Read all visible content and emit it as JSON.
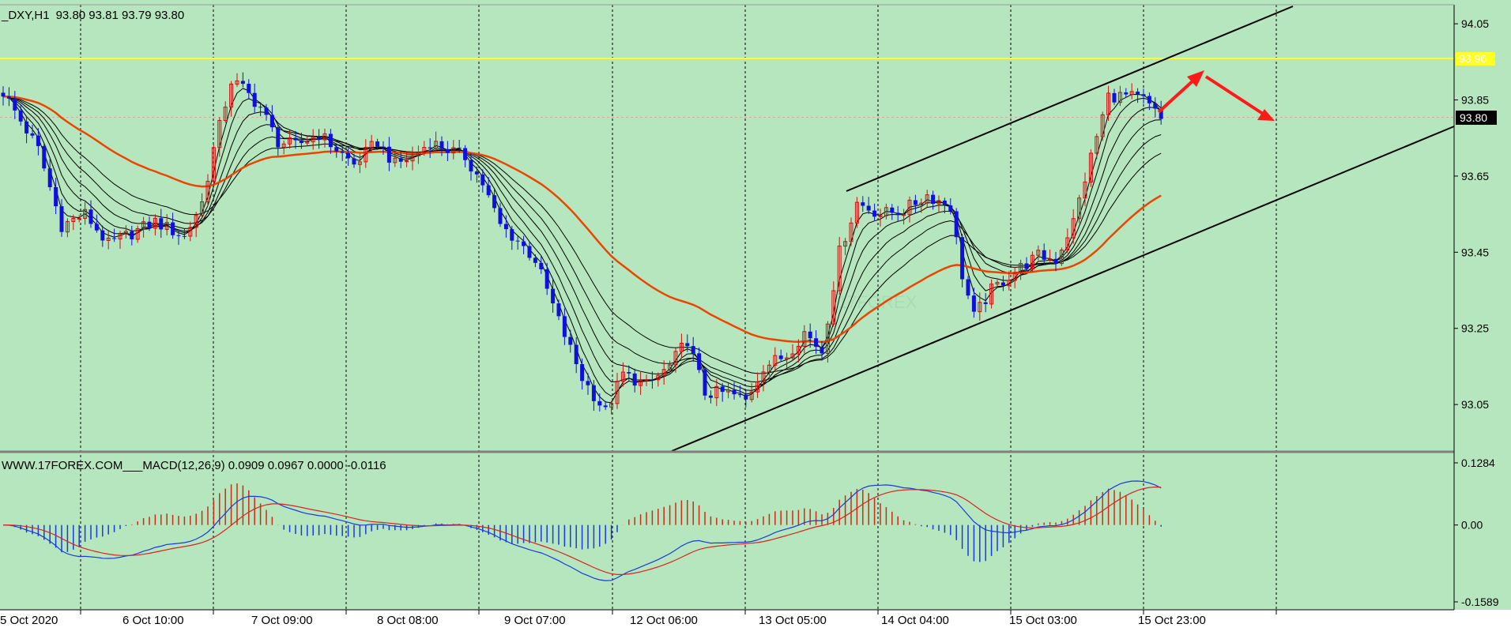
{
  "header": {
    "symbol": "_DXY,H1",
    "ohlc": "93.80 93.81 93.79 93.80"
  },
  "chart_data": [
    {
      "type": "candlestick",
      "title": "_DXY,H1",
      "ylim": [
        92.93,
        94.1
      ],
      "y_ticks": [
        "94.05",
        "93.85",
        "93.65",
        "93.45",
        "93.25",
        "93.05"
      ],
      "x_ticks": [
        "5 Oct 2020",
        "6 Oct 10:00",
        "7 Oct 09:00",
        "8 Oct 08:00",
        "9 Oct 07:00",
        "12 Oct 06:00",
        "13 Oct 05:00",
        "14 Oct 04:00",
        "15 Oct 03:00",
        "15 Oct 23:00"
      ],
      "bull_color": "#cc1111",
      "bear_color": "#1010dd",
      "anchors": [
        {
          "i": 0,
          "v": 93.87
        },
        {
          "i": 6,
          "v": 93.72
        },
        {
          "i": 10,
          "v": 93.52
        },
        {
          "i": 14,
          "v": 93.55
        },
        {
          "i": 18,
          "v": 93.47
        },
        {
          "i": 22,
          "v": 93.5
        },
        {
          "i": 26,
          "v": 93.53
        },
        {
          "i": 31,
          "v": 93.49
        },
        {
          "i": 34,
          "v": 93.58
        },
        {
          "i": 36,
          "v": 93.72
        },
        {
          "i": 39,
          "v": 93.9
        },
        {
          "i": 41,
          "v": 93.88
        },
        {
          "i": 44,
          "v": 93.83
        },
        {
          "i": 47,
          "v": 93.74
        },
        {
          "i": 50,
          "v": 93.73
        },
        {
          "i": 54,
          "v": 93.76
        },
        {
          "i": 57,
          "v": 93.72
        },
        {
          "i": 60,
          "v": 93.68
        },
        {
          "i": 64,
          "v": 93.74
        },
        {
          "i": 67,
          "v": 93.68
        },
        {
          "i": 70,
          "v": 93.7
        },
        {
          "i": 73,
          "v": 93.74
        },
        {
          "i": 76,
          "v": 93.72
        },
        {
          "i": 79,
          "v": 93.7
        },
        {
          "i": 82,
          "v": 93.63
        },
        {
          "i": 85,
          "v": 93.52
        },
        {
          "i": 88,
          "v": 93.48
        },
        {
          "i": 91,
          "v": 93.43
        },
        {
          "i": 95,
          "v": 93.27
        },
        {
          "i": 99,
          "v": 93.12
        },
        {
          "i": 103,
          "v": 93.03
        },
        {
          "i": 106,
          "v": 93.13
        },
        {
          "i": 110,
          "v": 93.1
        },
        {
          "i": 114,
          "v": 93.15
        },
        {
          "i": 117,
          "v": 93.22
        },
        {
          "i": 120,
          "v": 93.08
        },
        {
          "i": 124,
          "v": 93.08
        },
        {
          "i": 127,
          "v": 93.06
        },
        {
          "i": 130,
          "v": 93.15
        },
        {
          "i": 134,
          "v": 93.18
        },
        {
          "i": 137,
          "v": 93.24
        },
        {
          "i": 140,
          "v": 93.19
        },
        {
          "i": 143,
          "v": 93.45
        },
        {
          "i": 146,
          "v": 93.58
        },
        {
          "i": 150,
          "v": 93.55
        },
        {
          "i": 154,
          "v": 93.56
        },
        {
          "i": 158,
          "v": 93.6
        },
        {
          "i": 162,
          "v": 93.57
        },
        {
          "i": 164,
          "v": 93.39
        },
        {
          "i": 166,
          "v": 93.28
        },
        {
          "i": 169,
          "v": 93.35
        },
        {
          "i": 173,
          "v": 93.4
        },
        {
          "i": 177,
          "v": 93.44
        },
        {
          "i": 180,
          "v": 93.43
        },
        {
          "i": 183,
          "v": 93.53
        },
        {
          "i": 186,
          "v": 93.7
        },
        {
          "i": 189,
          "v": 93.86
        },
        {
          "i": 192,
          "v": 93.86
        },
        {
          "i": 195,
          "v": 93.85
        },
        {
          "i": 198,
          "v": 93.8
        }
      ]
    },
    {
      "type": "macd",
      "title": "WWW.17FOREX.COM___MACD(12,26,9) 0.0909 0.0967 0.0000 -0.0116",
      "ylim": [
        -0.1589,
        0.1284
      ],
      "y_ticks": [
        "0.1284",
        "0.00",
        "-0.1589"
      ]
    }
  ],
  "price_labels": {
    "resistance": "93.96",
    "current": "93.80"
  },
  "watermark": "17FOREX"
}
